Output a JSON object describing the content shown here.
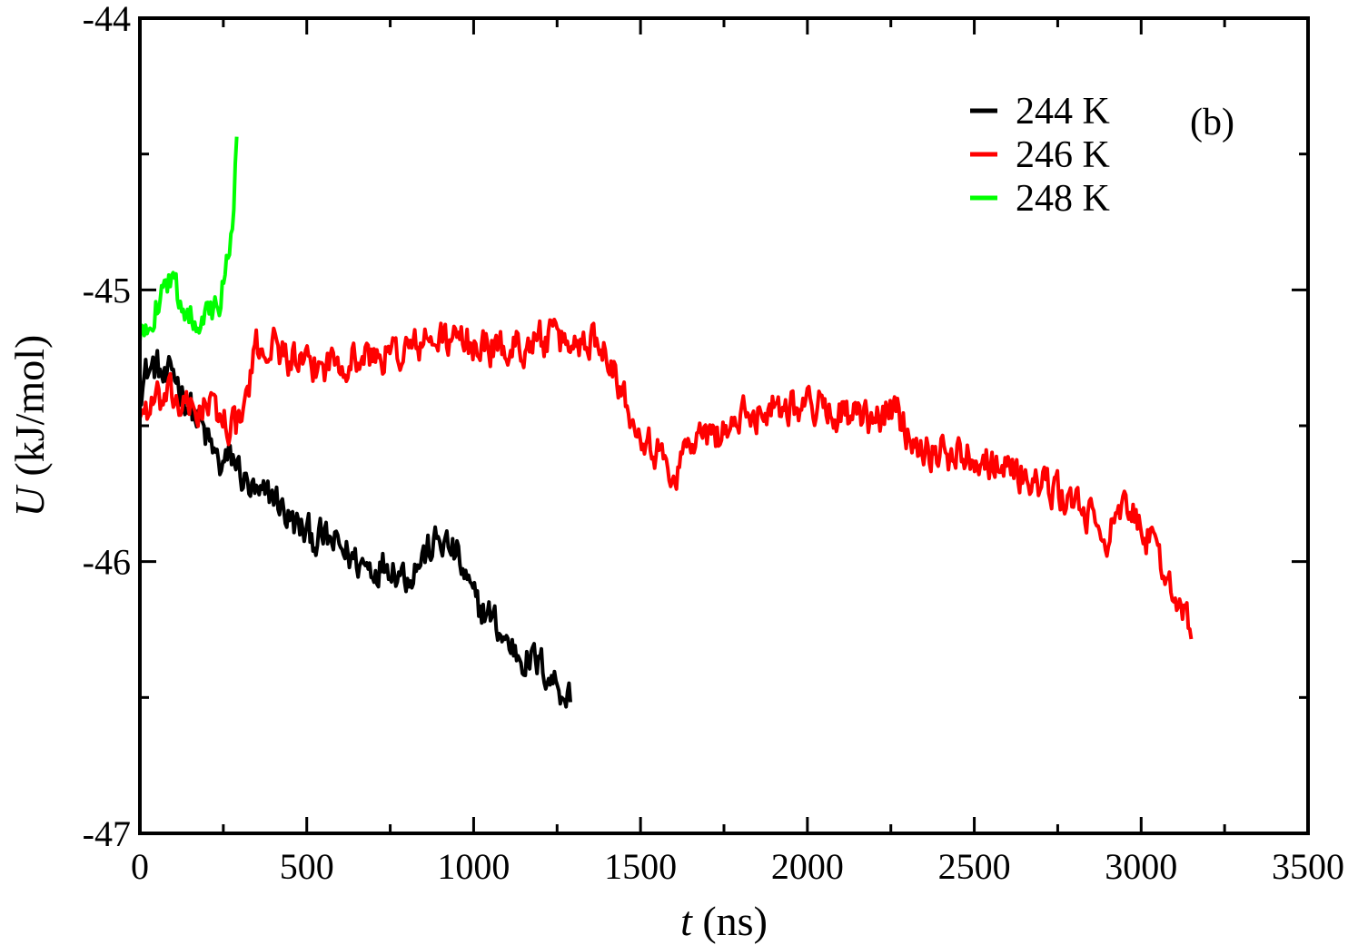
{
  "chart_data": {
    "type": "line",
    "panel_label": "(b)",
    "xlabel": {
      "var": "t",
      "unit": " (ns)"
    },
    "ylabel": {
      "var": "U",
      "unit": " (kJ/mol)"
    },
    "xlim": [
      0,
      3500
    ],
    "ylim": [
      -47,
      -44
    ],
    "xticks": [
      0,
      500,
      1000,
      1500,
      2000,
      2500,
      3000,
      3500
    ],
    "xtick_labels": [
      "0",
      "500",
      "1000",
      "1500",
      "2000",
      "2500",
      "3000",
      "3500"
    ],
    "yticks": [
      -47,
      -46,
      -45,
      -44
    ],
    "ytick_labels": [
      "-47",
      "-46",
      "-45",
      "-44"
    ],
    "minor_xtick_step": 250,
    "minor_ytick_step": 0.5,
    "grid": false,
    "legend_position": "top-right",
    "series": [
      {
        "name": "244 K",
        "color": "#000000",
        "x": [
          0,
          20,
          50,
          80,
          100,
          130,
          160,
          200,
          240,
          280,
          320,
          360,
          400,
          450,
          500,
          550,
          600,
          650,
          700,
          750,
          800,
          850,
          900,
          950,
          1000,
          1050,
          1100,
          1150,
          1200,
          1250,
          1290
        ],
        "y": [
          -45.35,
          -45.3,
          -45.28,
          -45.35,
          -45.3,
          -45.38,
          -45.45,
          -45.55,
          -45.65,
          -45.62,
          -45.72,
          -45.78,
          -45.75,
          -45.85,
          -45.9,
          -45.92,
          -45.95,
          -46.0,
          -46.02,
          -46.0,
          -46.05,
          -45.98,
          -45.92,
          -45.98,
          -46.15,
          -46.2,
          -46.3,
          -46.35,
          -46.38,
          -46.45,
          -46.5
        ],
        "noise": 0.06
      },
      {
        "name": "246 K",
        "color": "#ff0000",
        "x": [
          0,
          50,
          100,
          150,
          200,
          250,
          300,
          350,
          400,
          500,
          600,
          700,
          800,
          900,
          1000,
          1100,
          1200,
          1300,
          1350,
          1400,
          1450,
          1500,
          1550,
          1600,
          1650,
          1700,
          1800,
          1900,
          2000,
          2100,
          2200,
          2250,
          2300,
          2350,
          2400,
          2500,
          2600,
          2700,
          2800,
          2850,
          2900,
          2950,
          3000,
          3050,
          3100,
          3150
        ],
        "y": [
          -45.45,
          -45.42,
          -45.4,
          -45.45,
          -45.42,
          -45.48,
          -45.5,
          -45.22,
          -45.2,
          -45.3,
          -45.25,
          -45.25,
          -45.22,
          -45.18,
          -45.2,
          -45.22,
          -45.18,
          -45.2,
          -45.18,
          -45.2,
          -45.4,
          -45.5,
          -45.6,
          -45.68,
          -45.55,
          -45.55,
          -45.48,
          -45.42,
          -45.42,
          -45.45,
          -45.5,
          -45.42,
          -45.52,
          -45.58,
          -45.6,
          -45.6,
          -45.65,
          -45.72,
          -45.78,
          -45.85,
          -45.9,
          -45.82,
          -45.85,
          -46.0,
          -46.1,
          -46.28
        ],
        "noise": 0.06
      },
      {
        "name": "248 K",
        "color": "#00ff00",
        "x": [
          0,
          20,
          40,
          60,
          80,
          100,
          130,
          160,
          190,
          220,
          240,
          260,
          280,
          290
        ],
        "y": [
          -45.2,
          -45.12,
          -45.08,
          -45.02,
          -44.95,
          -45.0,
          -45.05,
          -45.1,
          -45.08,
          -45.1,
          -45.05,
          -44.9,
          -44.7,
          -44.4
        ],
        "noise": 0.05
      }
    ]
  }
}
